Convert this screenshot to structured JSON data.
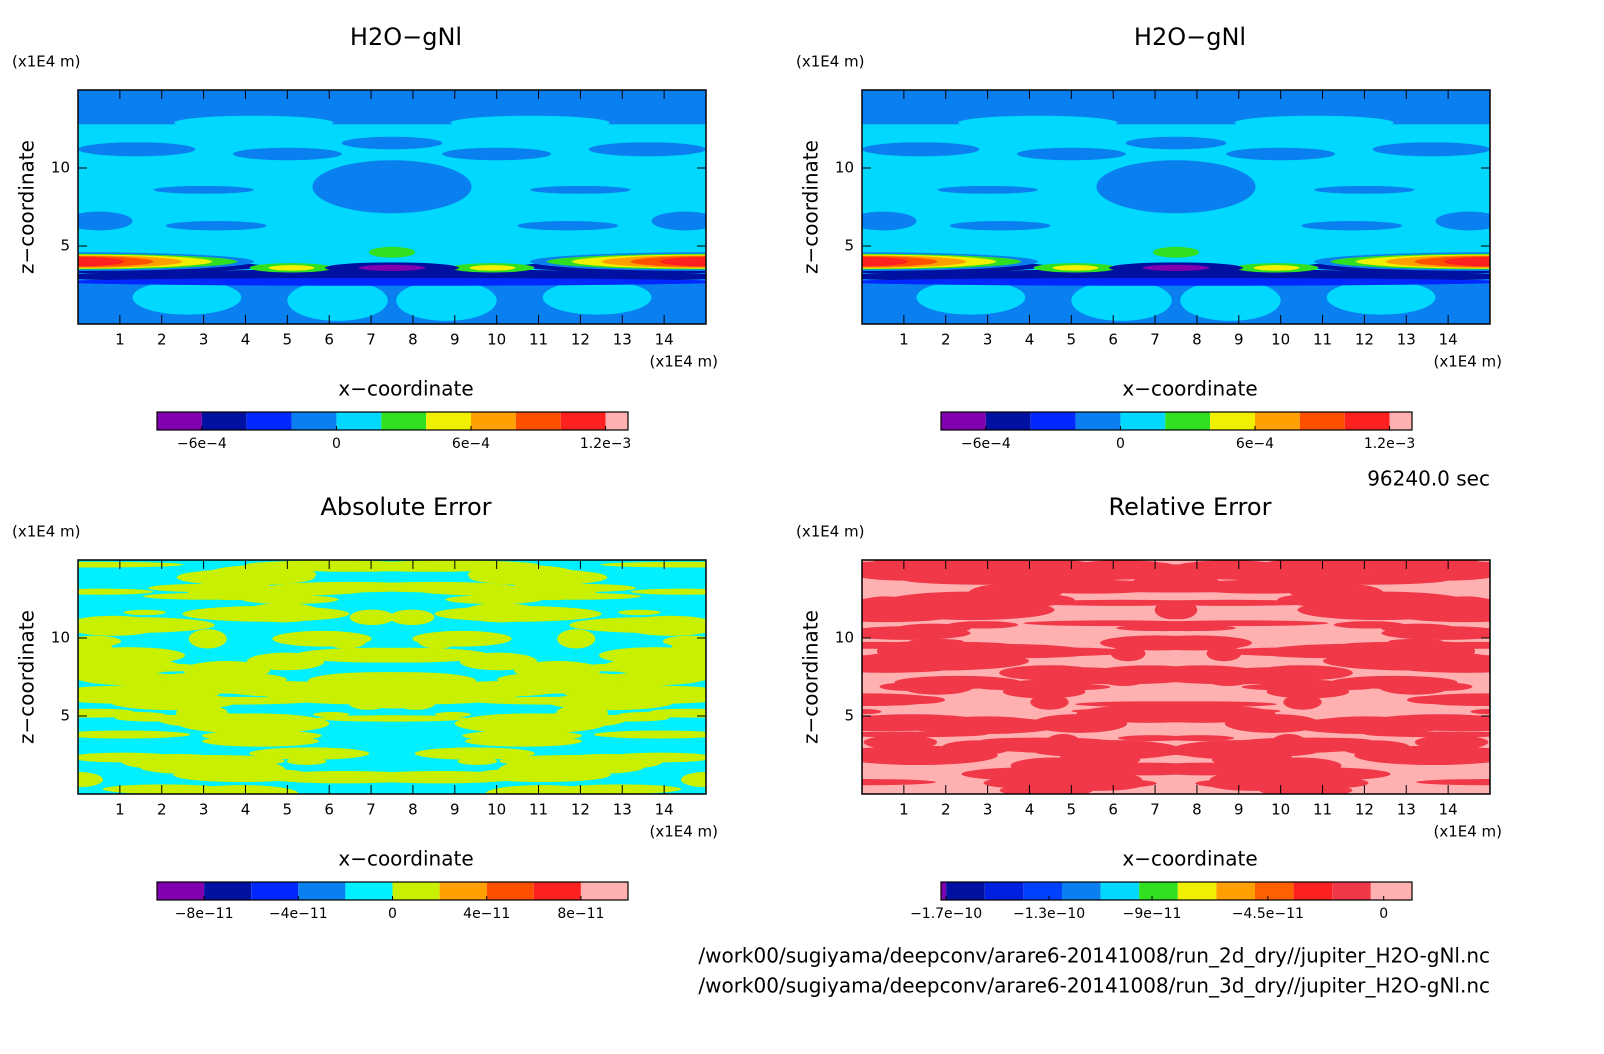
{
  "chart_data": [
    {
      "type": "contour",
      "title": "H2O−gNl",
      "xlabel": "x−coordinate",
      "ylabel": "z−coordinate",
      "x_unit": "(x1E4 m)",
      "y_unit": "(x1E4 m)",
      "xlim": [
        0,
        15
      ],
      "xticks": [
        1,
        2,
        3,
        4,
        5,
        6,
        7,
        8,
        9,
        10,
        11,
        12,
        13,
        14
      ],
      "ylim": [
        0,
        15
      ],
      "yticks": [
        5,
        10
      ],
      "levels": [
        -0.0008,
        -0.0006,
        -0.0004,
        -0.0002,
        0,
        0.0002,
        0.0004,
        0.0006,
        0.0008,
        0.001,
        0.0012,
        0.0013
      ],
      "colors": [
        "#8000b0",
        "#0010a0",
        "#0028ff",
        "#0a80f0",
        "#00d8ff",
        "#30e020",
        "#f0f000",
        "#ffa000",
        "#ff5000",
        "#ff2020",
        "#ffb0b0"
      ],
      "colorbar_ticks": [
        {
          "value": -0.0006,
          "label": "−6e−4"
        },
        0,
        {
          "value": 0.0006,
          "label": "6e−4"
        },
        {
          "value": 0.0012,
          "label": "1.2e−3"
        }
      ]
    },
    {
      "type": "contour",
      "title": "H2O−gNl",
      "xlabel": "x−coordinate",
      "ylabel": "z−coordinate",
      "x_unit": "(x1E4 m)",
      "y_unit": "(x1E4 m)",
      "xlim": [
        0,
        15
      ],
      "xticks": [
        1,
        2,
        3,
        4,
        5,
        6,
        7,
        8,
        9,
        10,
        11,
        12,
        13,
        14
      ],
      "ylim": [
        0,
        15
      ],
      "yticks": [
        5,
        10
      ],
      "levels": [
        -0.0008,
        -0.0006,
        -0.0004,
        -0.0002,
        0,
        0.0002,
        0.0004,
        0.0006,
        0.0008,
        0.001,
        0.0012,
        0.0013
      ],
      "colors": [
        "#8000b0",
        "#0010a0",
        "#0028ff",
        "#0a80f0",
        "#00d8ff",
        "#30e020",
        "#f0f000",
        "#ffa000",
        "#ff5000",
        "#ff2020",
        "#ffb0b0"
      ],
      "colorbar_ticks": [
        {
          "value": -0.0006,
          "label": "−6e−4"
        },
        0,
        {
          "value": 0.0006,
          "label": "6e−4"
        },
        {
          "value": 0.0012,
          "label": "1.2e−3"
        }
      ]
    },
    {
      "type": "contour",
      "title": "Absolute Error",
      "xlabel": "x−coordinate",
      "ylabel": "z−coordinate",
      "x_unit": "(x1E4 m)",
      "y_unit": "(x1E4 m)",
      "xlim": [
        0,
        15
      ],
      "xticks": [
        1,
        2,
        3,
        4,
        5,
        6,
        7,
        8,
        9,
        10,
        11,
        12,
        13,
        14
      ],
      "ylim": [
        0,
        15
      ],
      "yticks": [
        5,
        10
      ],
      "levels": [
        -1e-10,
        -8e-11,
        -6e-11,
        -4e-11,
        -2e-11,
        0,
        2e-11,
        4e-11,
        6e-11,
        8e-11,
        1e-10
      ],
      "colors": [
        "#8000b0",
        "#0010a0",
        "#0028ff",
        "#0a80f0",
        "#00f0ff",
        "#c8f000",
        "#ffa000",
        "#ff5000",
        "#ff2020",
        "#ffb0b0"
      ],
      "colorbar_ticks": [
        {
          "value": -8e-11,
          "label": "−8e−11"
        },
        {
          "value": -4e-11,
          "label": "−4e−11"
        },
        0,
        {
          "value": 4e-11,
          "label": "4e−11"
        },
        {
          "value": 8e-11,
          "label": "8e−11"
        }
      ]
    },
    {
      "type": "contour",
      "title": "Relative Error",
      "xlabel": "x−coordinate",
      "ylabel": "z−coordinate",
      "x_unit": "(x1E4 m)",
      "y_unit": "(x1E4 m)",
      "xlim": [
        0,
        15
      ],
      "xticks": [
        1,
        2,
        3,
        4,
        5,
        6,
        7,
        8,
        9,
        10,
        11,
        12,
        13,
        14
      ],
      "ylim": [
        0,
        15
      ],
      "yticks": [
        5,
        10
      ],
      "levels": [
        -1.72e-10,
        -1.7e-10,
        -1.55e-10,
        -1.4e-10,
        -1.25e-10,
        -1.1e-10,
        -9.5e-11,
        -8e-11,
        -6.5e-11,
        -5e-11,
        -3.5e-11,
        -2e-11,
        -5e-12,
        1.1e-11
      ],
      "colors": [
        "#8000b0",
        "#0010a0",
        "#0020e0",
        "#0040ff",
        "#0a80f0",
        "#00d8ff",
        "#30e020",
        "#f0f000",
        "#ffa000",
        "#ff6000",
        "#ff2020",
        "#f03848",
        "#ffb0b0"
      ],
      "colorbar_ticks": [
        {
          "value": -1.7e-10,
          "label": "−1.7e−10"
        },
        {
          "value": -1.3e-10,
          "label": "−1.3e−10"
        },
        {
          "value": -9e-11,
          "label": "−9e−11"
        },
        {
          "value": -4.5e-11,
          "label": "−4.5e−11"
        },
        0
      ]
    }
  ],
  "time": "96240.0 sec",
  "files": [
    "/work00/sugiyama/deepconv/arare6-20141008/run_2d_dry//jupiter_H2O-gNl.nc",
    "/work00/sugiyama/deepconv/arare6-20141008/run_3d_dry//jupiter_H2O-gNl.nc"
  ]
}
